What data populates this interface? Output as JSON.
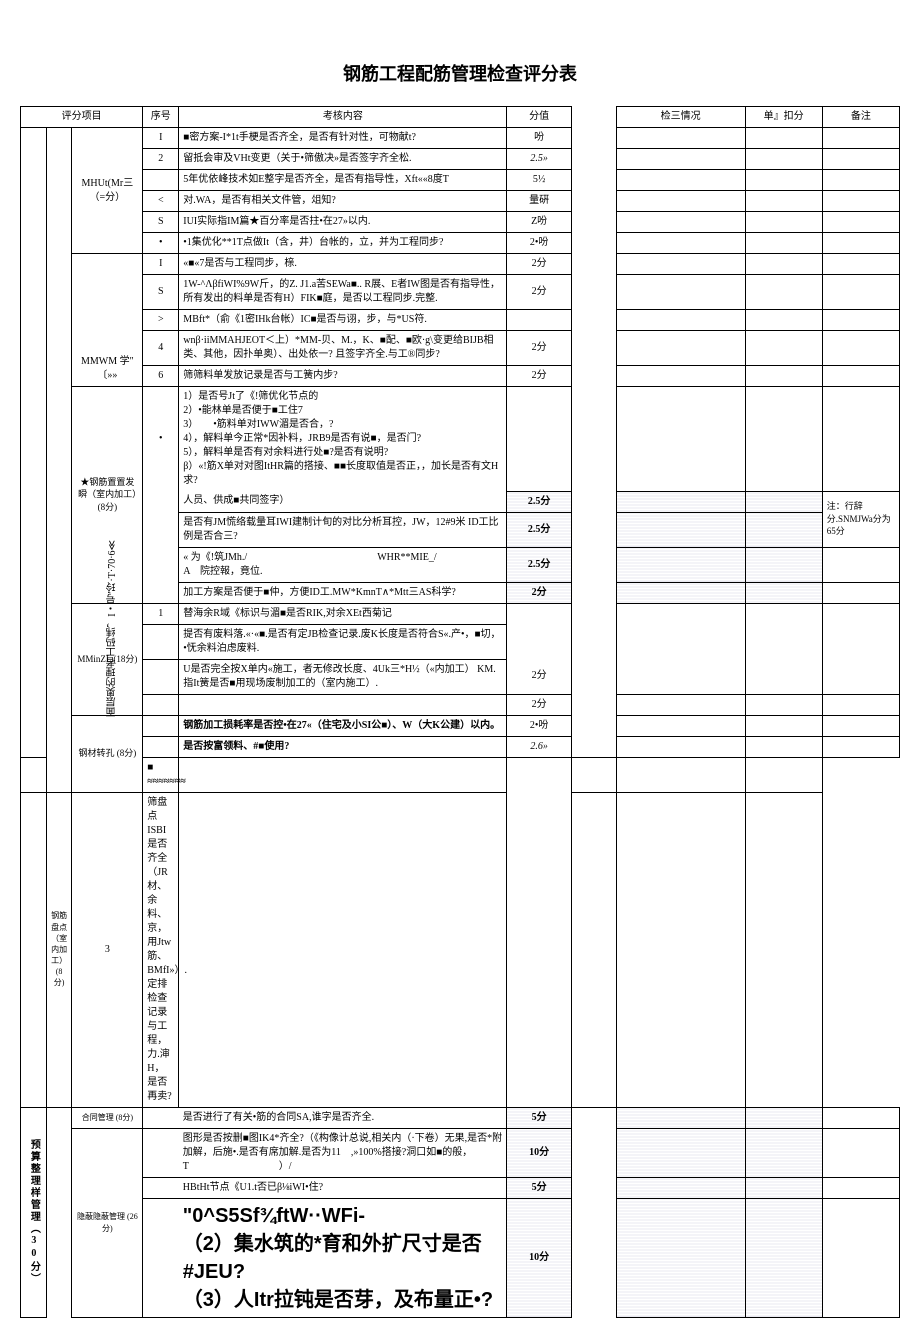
{
  "title": "钢筋工程配筋管理检查评分表",
  "sidebar": "面层奥的理者工码纬，I・号'玲·T·70·6≪",
  "headers": {
    "eval": "评分项目",
    "seq": "序号",
    "content": "考核内容",
    "score": "分值",
    "check": "检三情况",
    "deduct": "单』扣分",
    "remark": "备注"
  },
  "cat1_a": "",
  "cat2_a": "",
  "cat3_a": "MHUt(Mr三（=分）",
  "cat3_b": "MMWM 学\" 〔»»",
  "cat3_c": "★钢筋置置发瞬（室内加工）(8分)",
  "cat3_d": "MMinZL (18分)",
  "cat3_e": "钢材转孔 (8分)",
  "cat3_f": "钢筋盘点（室内加工）(8分)",
  "cat1_b": "预算整理样管理（30分）",
  "cat3_g": "合同管理 (8分)",
  "cat3_h": "隐蔽隐蔽管理 (26分)",
  "rows": [
    {
      "seq": "I",
      "content": "■密方案-I*1t手梗是否齐全，是否有针对性，可物献t?",
      "score": "吩"
    },
    {
      "seq": "2",
      "content": "留抵会审及VHt变更（关于•筛傲决»是否签字齐全松.",
      "score": "2.5»"
    },
    {
      "seq": "",
      "content": "5年优依峰技术如E整字是否齐全，是否有指导性，Xft««8度T",
      "score": "5½"
    },
    {
      "seq": "<",
      "content": "对.WA，是否有相关文件管，俎知?",
      "score": "量硏"
    },
    {
      "seq": "S",
      "content": "IUI实际指IM篇★百分率是否拄•在27»以内.",
      "score": "Z吩"
    },
    {
      "seq": "•",
      "content": "•1集优化**1T点做It（含，井）台帐的，立，并为工程同步?",
      "score": "2•吩"
    },
    {
      "seq": "I",
      "content": "«■«7是否与工程同步，榇.",
      "score": "2分"
    },
    {
      "seq": "S",
      "content": "1W-^ΛβfiWI%9W斤，的Z. J1.a苦SEWa■.. R展、E者IW图是否有指导性，所有发出的料单是否有H）FIK■庭，是否以工程同步.完整.",
      "score": "2分"
    },
    {
      "seq": ">",
      "content": "MBft*（俞《1密IHk台帐）IC■是否与诩，步，与*US符.",
      "score": ""
    },
    {
      "seq": "4",
      "content": "wnβ·iiMMAHJEOT＜上）*MM-贝、M.，K、■配、■欧·g\\变更给BIJB相类、其他，因扑单奥）、出处依一? 且签字齐全.与工®同步?",
      "score": "2分"
    },
    {
      "seq": "6",
      "content": "筛筛料单发放记录是否与工簧内步?",
      "score": "2分"
    }
  ],
  "bullet_block": "1）是否号Jt了《!筛优化节点的\n2）•能林单是否便于■工住7\n3）　　•筋料单对IWW湄是否合，?\n4），解料单今正常*因补料，JRB9是否有说■，是否门?\n5），解料单是否有对余料进行处■?是否有说明?\nβ）«!筋X单对对图ItHR篇的搭接、■■长度取值是否正，，加长是否有文H求?",
  "mid_rows": [
    {
      "content": "人员、供成■共同签字）",
      "score": "2.5分"
    },
    {
      "content": "是否有JM慌络载量耳IWI建制计旬的对比分析耳控，JW，12#9米 ID工比例是否合三?",
      "score": "2.5分"
    },
    {
      "content": "« 为《!筑JMh./　　　　　　　　　　　　　WHR**MIE_/\nA　院控報，竟位.",
      "score": "2.5分"
    },
    {
      "content": "加工方案是否便于■仲，方便ID工.MW*KmnT∧*Mtt三AS科学?",
      "score": "2分"
    }
  ],
  "lower_rows": [
    {
      "seq": "1",
      "content": "替海余R域《标识与湄■是否RIK,对余XEt西菊记",
      "score": ""
    },
    {
      "seq": "",
      "content": "提否有废料落.«·«■.是否有定JB检查记录.废K长度是否符合S«.产•，■切，•怃余料泊虑废料.",
      "score": ""
    },
    {
      "seq": "",
      "content": "U是否完全按X单内«施工，者无修改长度、4Uk三*H½（«内加工） KM.指It簧是否■用现场废制加工的（室内施工）.",
      "score": "2分"
    },
    {
      "seq": "",
      "content": "",
      "score": "2分"
    },
    {
      "seq": "",
      "content": "钢筋加工损耗率是否控•在27«（住宅及小SI公■）、W（大K公建）以内。",
      "score": "2•吩"
    },
    {
      "seq": "",
      "content": "是否按富领料、#■使用?",
      "score": "2.6»"
    },
    {
      "seq": "",
      "content": "",
      "score": ""
    },
    {
      "seq": "3",
      "content": "筛盘点ISBI是否齐全（JR材、余料、京，用Jtw筋、BMfI»）.定排检查记录与工程，力.渖H，是否再卖?",
      "score": ""
    }
  ],
  "bottom_rows": [
    {
      "content": "是否进行了有关•筋的合同SA,谁字是否齐全.",
      "score": "5分"
    },
    {
      "content": "图形是否按删■图IK4*齐全?（《构像计总说,相关内（·下卷）无果,是否*附加解，后施•.是否有席加解.是否为11　,»100%搭接?洞口如■的般，T　　　　　　　　　）/",
      "score": "10分"
    },
    {
      "content": "HBtHt节点《U1.t否已β⅛iWI•住?",
      "score": "5分"
    },
    {
      "content": "\"0^S5Sf¾ftW··WFi-\n（2）集水筑的*育和外扩尺寸是否#JEU?\n（3）人Itr拉钝是否芽，及布量正•?",
      "score": "10分"
    }
  ],
  "remark_note": "注：行辞分.SNMJWa分为65分"
}
